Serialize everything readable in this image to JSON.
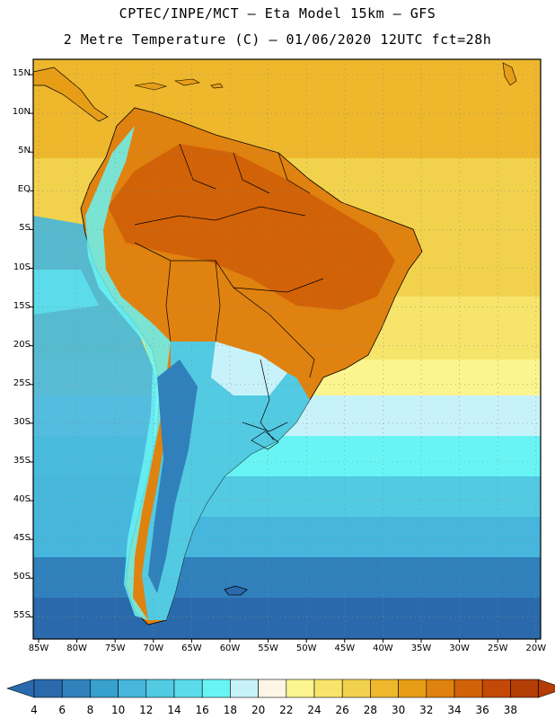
{
  "header": {
    "title": "CPTEC/INPE/MCT –  Eta Model 15km – GFS",
    "subtitle": "2 Metre Temperature (C) – 01/06/2020 12UTC fct=28h"
  },
  "map": {
    "region": "South America",
    "variable": "2 Metre Temperature",
    "units": "C",
    "lat_labels": [
      "15N",
      "10N",
      "5N",
      "EQ",
      "5S",
      "10S",
      "15S",
      "20S",
      "25S",
      "30S",
      "35S",
      "40S",
      "45S",
      "50S",
      "55S"
    ],
    "lon_labels": [
      "85W",
      "80W",
      "75W",
      "70W",
      "65W",
      "60W",
      "55W",
      "50W",
      "45W",
      "40W",
      "35W",
      "30W",
      "25W",
      "20W"
    ]
  },
  "colorbar": {
    "labels": [
      "4",
      "6",
      "8",
      "10",
      "12",
      "14",
      "16",
      "18",
      "20",
      "22",
      "24",
      "26",
      "28",
      "30",
      "32",
      "34",
      "36",
      "38"
    ],
    "colors": [
      "#2a6aac",
      "#3080bc",
      "#38a0cc",
      "#46b6dc",
      "#52cae2",
      "#5cdcea",
      "#68f4f4",
      "#c8f2fa",
      "#fdf6e6",
      "#fcf48e",
      "#f6e56a",
      "#f2d24c",
      "#eeb72c",
      "#e79e16",
      "#e0820f",
      "#d26207",
      "#c44806",
      "#b33d04"
    ],
    "under_color": "#2a6aac",
    "over_color": "#b33d04"
  }
}
